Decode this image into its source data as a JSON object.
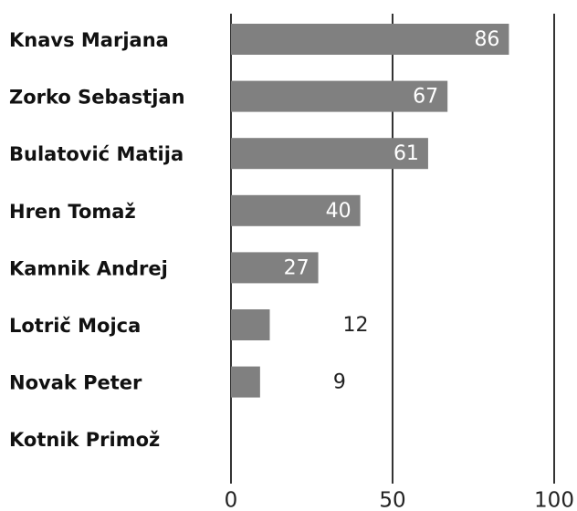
{
  "chart_data": {
    "type": "bar",
    "orientation": "horizontal",
    "categories": [
      "Knavs Marjana",
      "Zorko Sebastjan",
      "Bulatović Matija",
      "Hren Tomaž",
      "Kamnik Andrej",
      "Lotrič Mojca",
      "Novak Peter",
      "Kotnik Primož"
    ],
    "values": [
      86,
      67,
      61,
      40,
      27,
      12,
      9,
      null
    ],
    "color": "#808080",
    "xlim": [
      0,
      100
    ],
    "xticks": [
      0,
      50,
      100
    ],
    "grid": true
  }
}
